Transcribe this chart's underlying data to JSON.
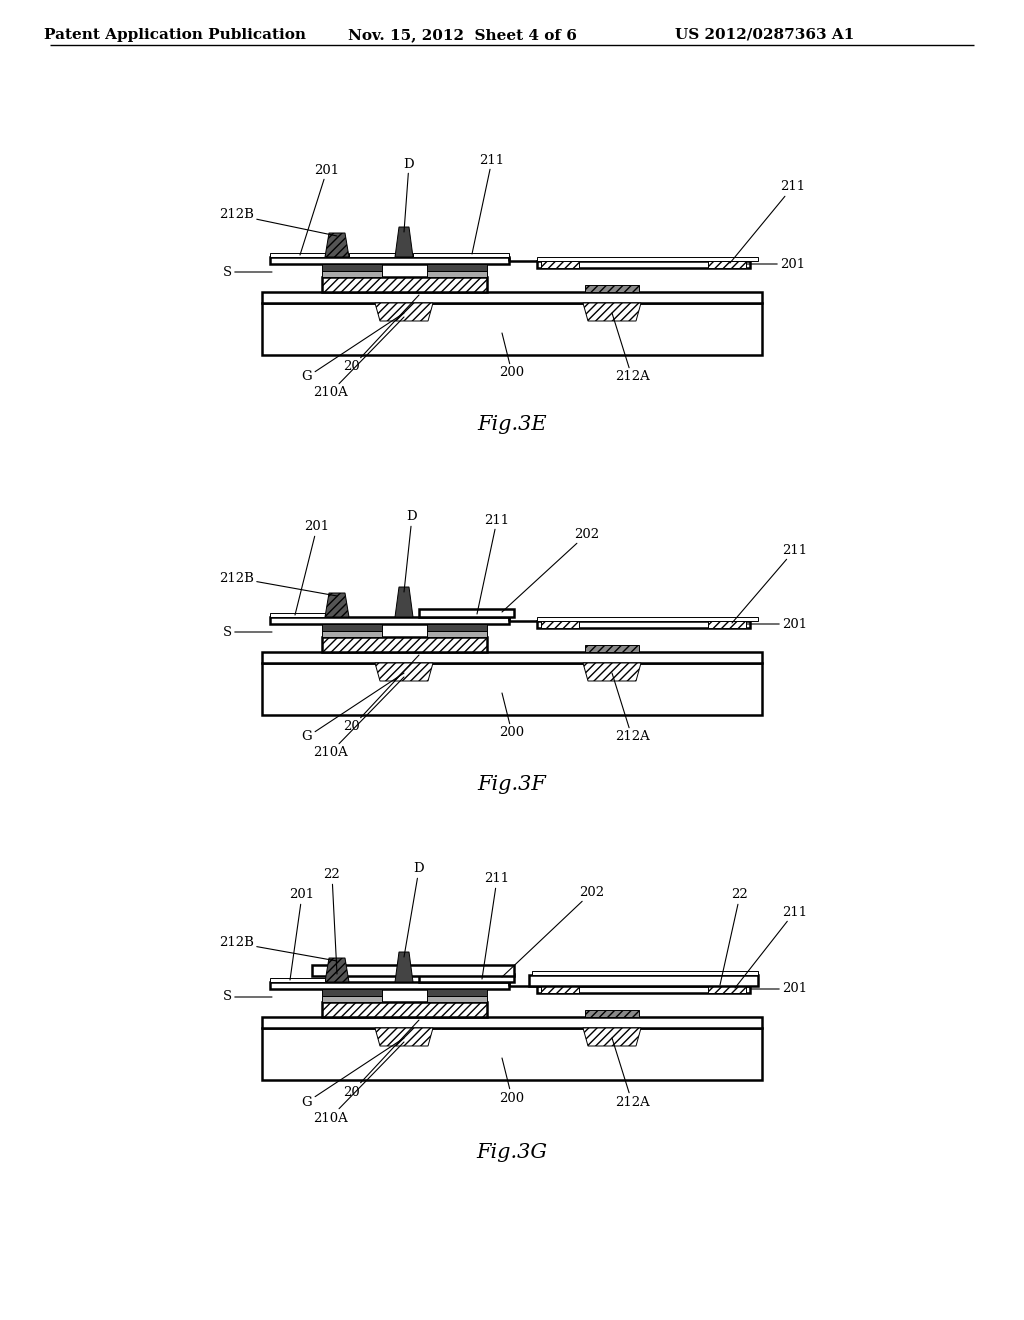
{
  "bg_color": "#ffffff",
  "header_left": "Patent Application Publication",
  "header_mid": "Nov. 15, 2012  Sheet 4 of 6",
  "header_right": "US 2012/0287363 A1",
  "fig_label_fontsize": 15,
  "header_fontsize": 11,
  "annotation_fontsize": 9.5,
  "line_color": "#000000"
}
